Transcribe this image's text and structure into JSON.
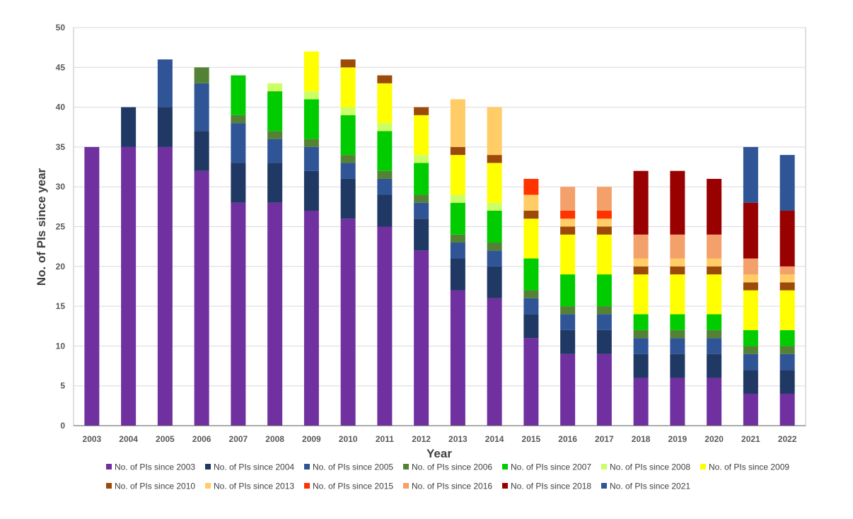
{
  "chart_data": {
    "type": "bar",
    "stacked": true,
    "xlabel": "Year",
    "ylabel": "No. of PIs since year",
    "ylim": [
      0,
      50
    ],
    "yticks": [
      0,
      5,
      10,
      15,
      20,
      25,
      30,
      35,
      40,
      45,
      50
    ],
    "grid": true,
    "legend_position": "bottom",
    "categories": [
      "2003",
      "2004",
      "2005",
      "2006",
      "2007",
      "2008",
      "2009",
      "2010",
      "2011",
      "2012",
      "2013",
      "2014",
      "2015",
      "2016",
      "2017",
      "2018",
      "2019",
      "2020",
      "2021",
      "2022"
    ],
    "series": [
      {
        "name": "No. of PIs since 2003",
        "color": "#7030A0",
        "values": [
          35,
          35,
          35,
          32,
          28,
          28,
          27,
          26,
          25,
          22,
          17,
          16,
          11,
          9,
          9,
          6,
          6,
          6,
          4,
          4
        ]
      },
      {
        "name": "No. of PIs since 2004",
        "color": "#1F3864",
        "values": [
          0,
          5,
          5,
          5,
          5,
          5,
          5,
          5,
          4,
          4,
          4,
          4,
          3,
          3,
          3,
          3,
          3,
          3,
          3,
          3
        ]
      },
      {
        "name": "No. of PIs since 2005",
        "color": "#2F5597",
        "values": [
          0,
          0,
          6,
          6,
          5,
          3,
          3,
          2,
          2,
          2,
          2,
          2,
          2,
          2,
          2,
          2,
          2,
          2,
          2,
          2
        ]
      },
      {
        "name": "No. of PIs since 2006",
        "color": "#548235",
        "values": [
          0,
          0,
          0,
          2,
          1,
          1,
          1,
          1,
          1,
          1,
          1,
          1,
          1,
          1,
          1,
          1,
          1,
          1,
          1,
          1
        ]
      },
      {
        "name": "No. of PIs since 2007",
        "color": "#00CC00",
        "values": [
          0,
          0,
          0,
          0,
          5,
          5,
          5,
          5,
          5,
          4,
          4,
          4,
          4,
          4,
          4,
          2,
          2,
          2,
          2,
          2
        ]
      },
      {
        "name": "No. of PIs since 2008",
        "color": "#CCFF66",
        "values": [
          0,
          0,
          0,
          0,
          0,
          1,
          1,
          1,
          1,
          1,
          1,
          1,
          0,
          0,
          0,
          0,
          0,
          0,
          0,
          0
        ]
      },
      {
        "name": "No. of PIs since 2009",
        "color": "#FFFF00",
        "values": [
          0,
          0,
          0,
          0,
          0,
          0,
          5,
          5,
          5,
          5,
          5,
          5,
          5,
          5,
          5,
          5,
          5,
          5,
          5,
          5
        ]
      },
      {
        "name": "No. of PIs since 2010",
        "color": "#9C4A0A",
        "values": [
          0,
          0,
          0,
          0,
          0,
          0,
          0,
          1,
          1,
          1,
          1,
          1,
          1,
          1,
          1,
          1,
          1,
          1,
          1,
          1
        ]
      },
      {
        "name": "No. of PIs since 2013",
        "color": "#FFCC66",
        "values": [
          0,
          0,
          0,
          0,
          0,
          0,
          0,
          0,
          0,
          0,
          6,
          6,
          2,
          1,
          1,
          1,
          1,
          1,
          1,
          1
        ]
      },
      {
        "name": "No. of PIs since 2015",
        "color": "#FF3300",
        "values": [
          0,
          0,
          0,
          0,
          0,
          0,
          0,
          0,
          0,
          0,
          0,
          0,
          2,
          1,
          1,
          0,
          0,
          0,
          0,
          0
        ]
      },
      {
        "name": "No. of PIs since 2016",
        "color": "#F4A06A",
        "values": [
          0,
          0,
          0,
          0,
          0,
          0,
          0,
          0,
          0,
          0,
          0,
          0,
          0,
          3,
          3,
          3,
          3,
          3,
          2,
          1
        ]
      },
      {
        "name": "No. of PIs since 2018",
        "color": "#990000",
        "values": [
          0,
          0,
          0,
          0,
          0,
          0,
          0,
          0,
          0,
          0,
          0,
          0,
          0,
          0,
          0,
          8,
          8,
          7,
          7,
          7
        ]
      },
      {
        "name": "No. of PIs since 2021",
        "color": "#2F5597",
        "values": [
          0,
          0,
          0,
          0,
          0,
          0,
          0,
          0,
          0,
          0,
          0,
          0,
          0,
          0,
          0,
          0,
          0,
          0,
          7,
          7
        ]
      }
    ]
  }
}
